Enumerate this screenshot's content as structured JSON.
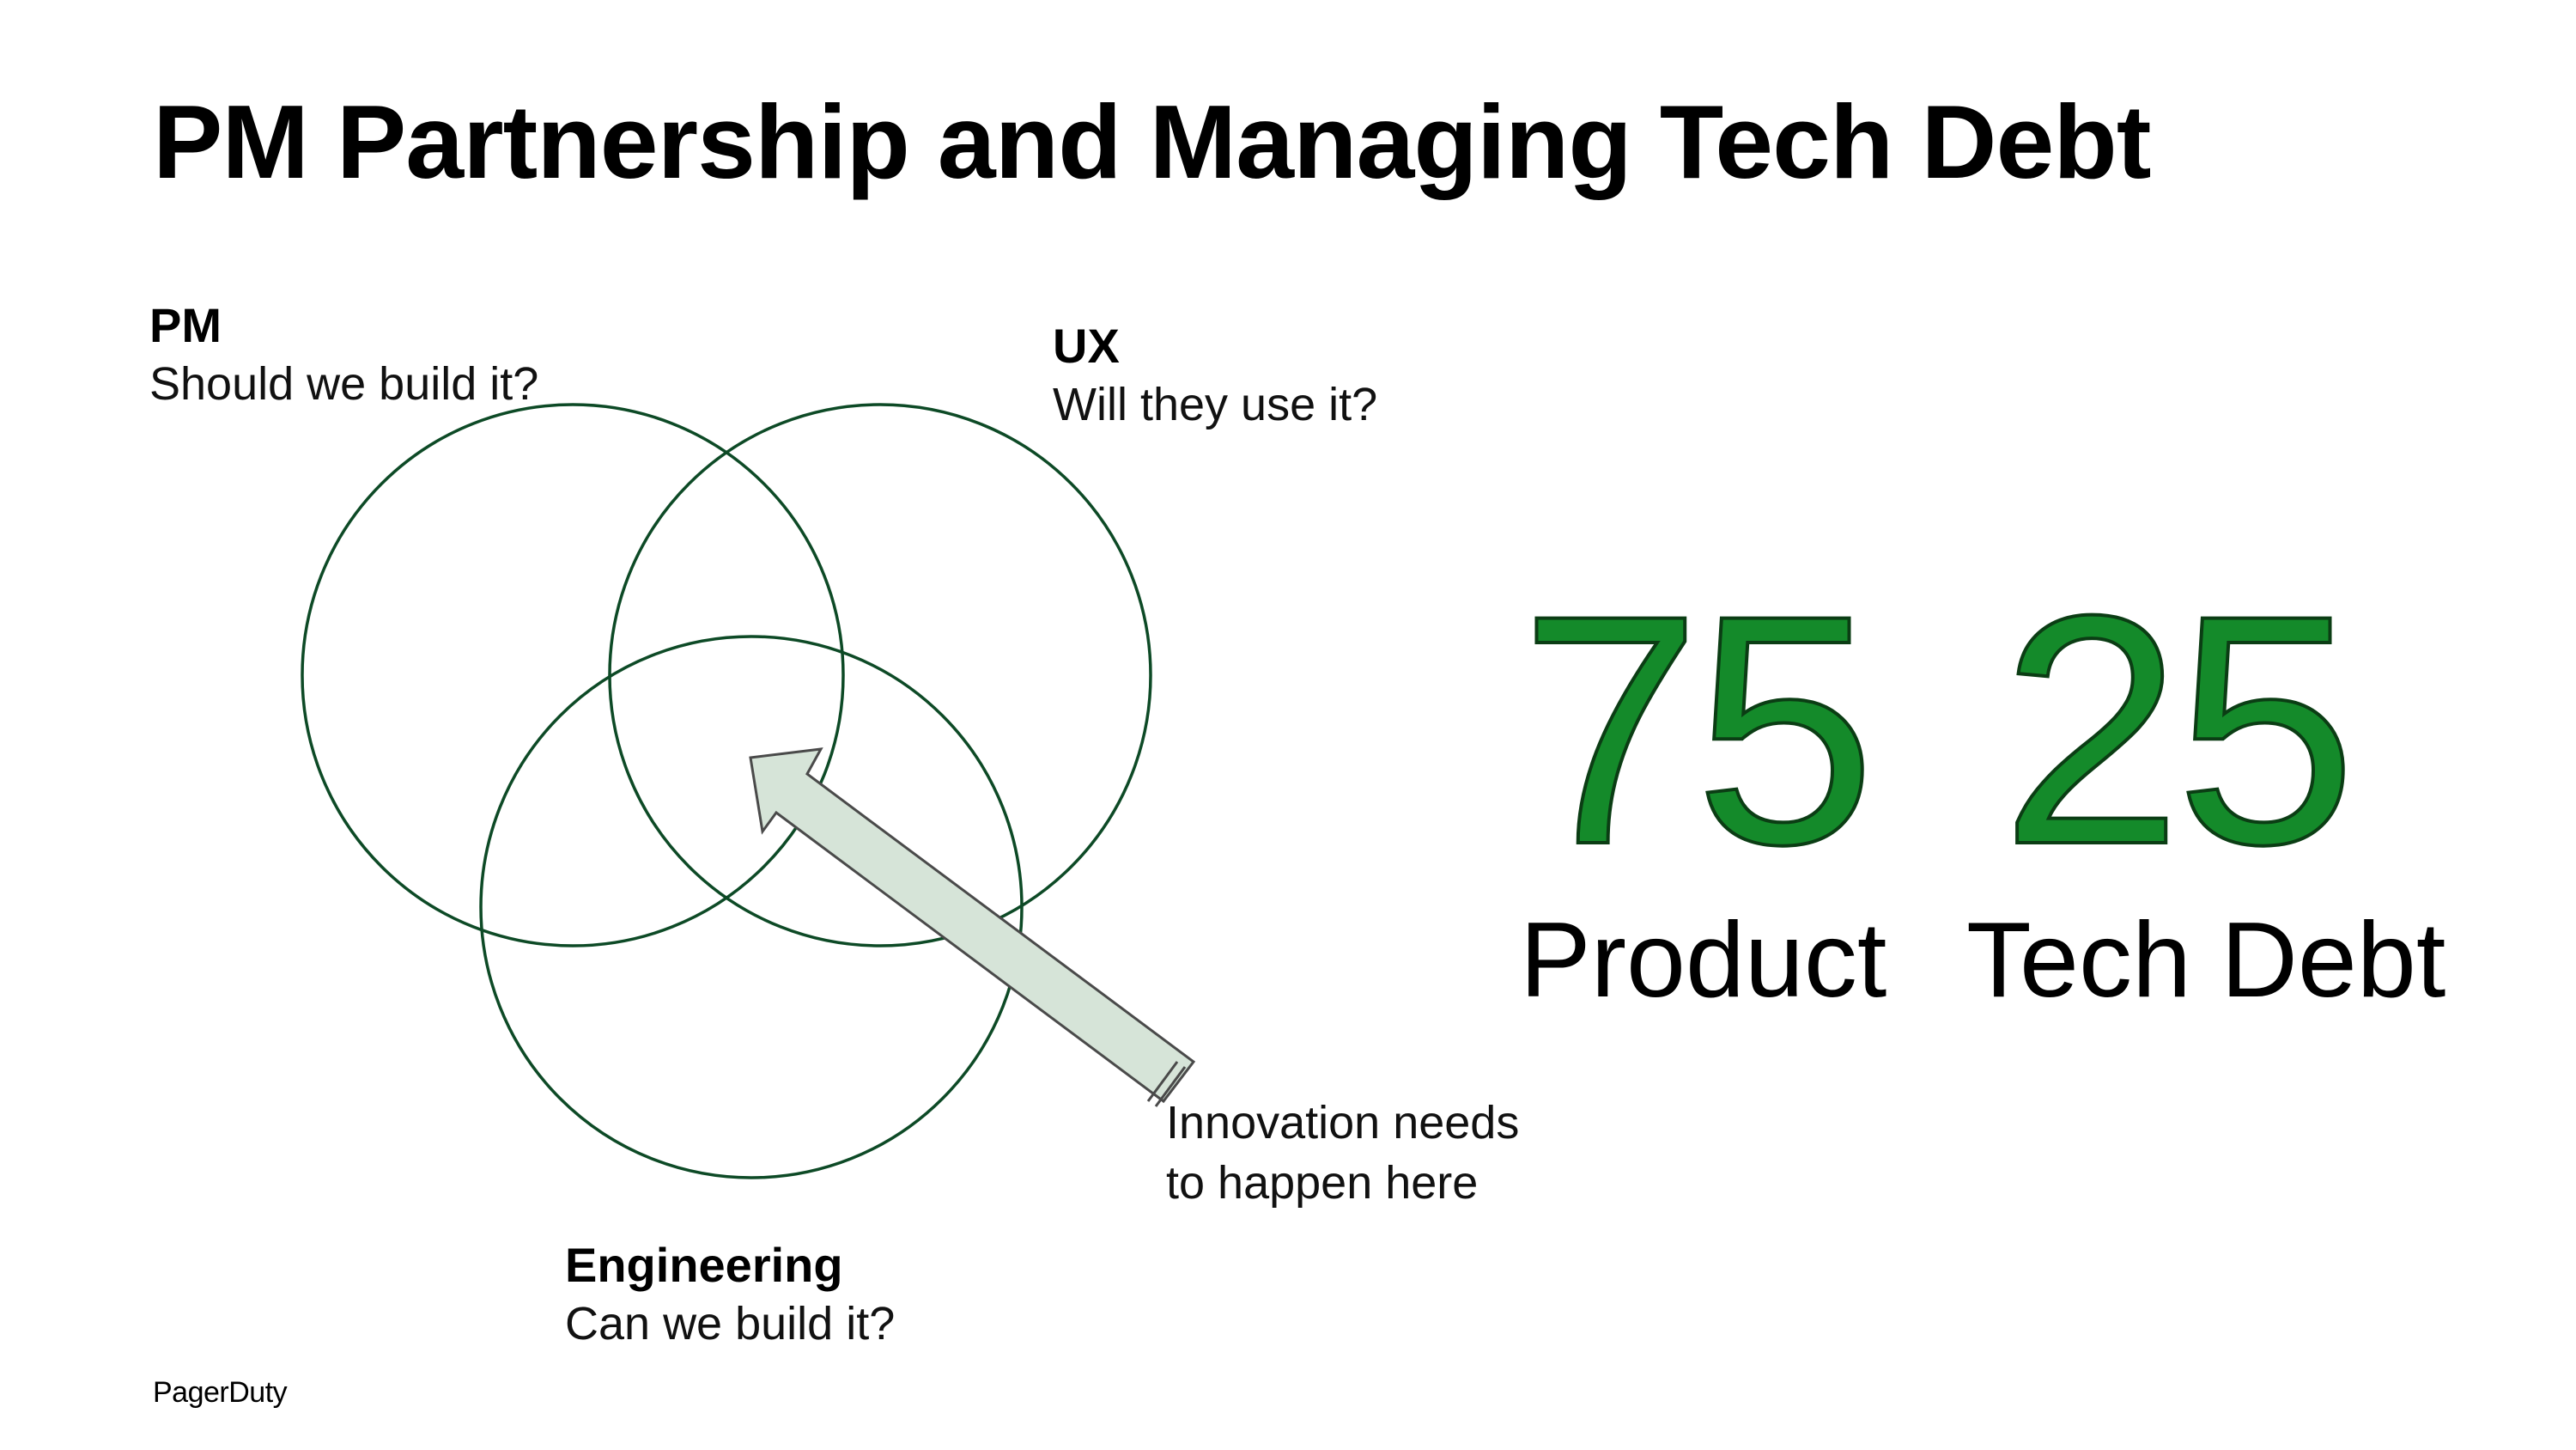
{
  "slide": {
    "title": "PM Partnership and Managing Tech Debt"
  },
  "diagram": {
    "pm": {
      "name": "PM",
      "question": "Should we build it?"
    },
    "ux": {
      "name": "UX",
      "question": "Will they use it?"
    },
    "engineering": {
      "name": "Engineering",
      "question": "Can we build it?"
    },
    "annotation": {
      "line1": "Innovation needs",
      "line2": "to happen here"
    },
    "colors": {
      "circle_stroke": "#0d4a26",
      "arrow_fill": "#d6e4d8",
      "arrow_stroke": "#4a4a4a"
    }
  },
  "split": {
    "product": {
      "value": "75",
      "label": "Product"
    },
    "tech_debt": {
      "value": "25",
      "label": "Tech Debt"
    },
    "number_color": "#148a2a"
  },
  "footer": {
    "logo_text": "PagerDuty"
  }
}
